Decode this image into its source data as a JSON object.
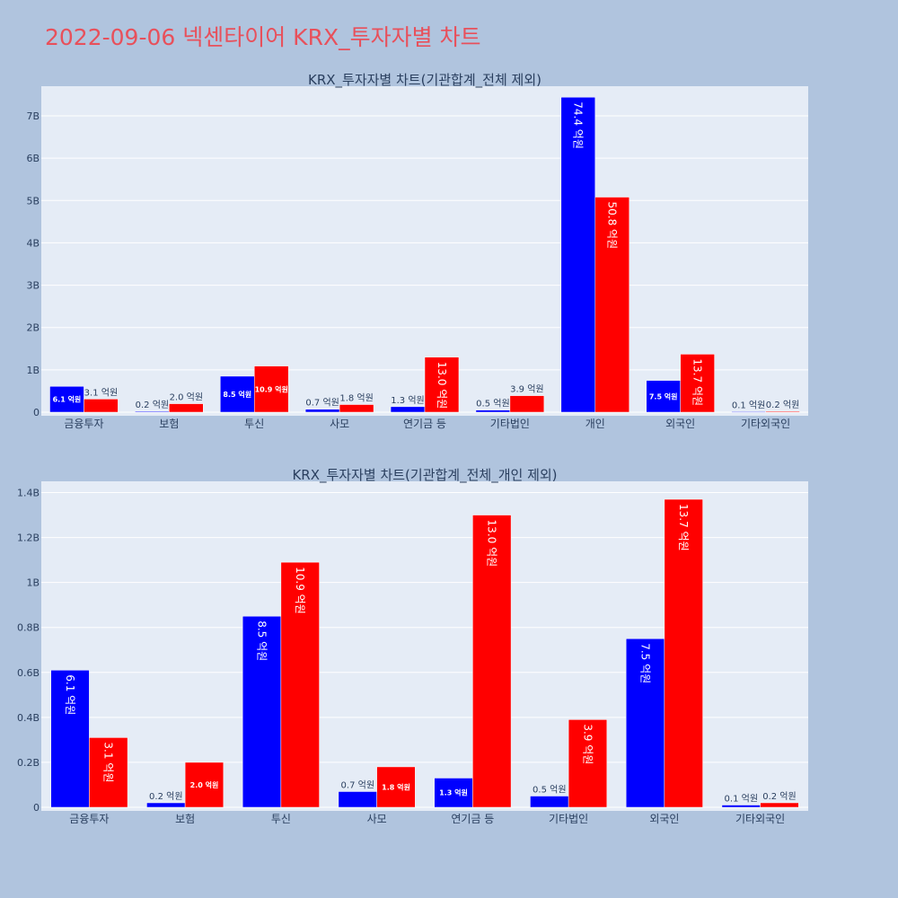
{
  "page": {
    "title": "2022-09-06 넥센타이어 KRX_투자자별 차트"
  },
  "colors": {
    "background": "#b0c4de",
    "plot_bg": "#e5ecf6",
    "series1": "#0000ff",
    "series2": "#ff0000",
    "title": "#e8505b"
  },
  "chart_data": [
    {
      "type": "bar",
      "title": "KRX_투자자별 차트(기관합계_전체 제외)",
      "categories": [
        "금융투자",
        "보험",
        "투신",
        "사모",
        "연기금 등",
        "기타법인",
        "개인",
        "외국인",
        "기타외국인"
      ],
      "series": [
        {
          "values": [
            0.61,
            0.02,
            0.85,
            0.07,
            0.13,
            0.05,
            7.44,
            0.75,
            0.01
          ],
          "labels": [
            "6.1 억원",
            "0.2 억원",
            "8.5 억원",
            "0.7 억원",
            "1.3 억원",
            "0.5 억원",
            "74.4 억원",
            "7.5 억원",
            "0.1 억원"
          ]
        },
        {
          "values": [
            0.31,
            0.2,
            1.09,
            0.18,
            1.3,
            0.39,
            5.08,
            1.37,
            0.02
          ],
          "labels": [
            "3.1 억원",
            "2.0 억원",
            "10.9 억원",
            "1.8 억원",
            "13.0 억원",
            "3.9 억원",
            "50.8 억원",
            "13.7 억원",
            "0.2 억원"
          ]
        }
      ],
      "ylim": [
        0,
        7.7
      ],
      "yticks": [
        0,
        1,
        2,
        3,
        4,
        5,
        6,
        7
      ],
      "ytick_labels": [
        "0",
        "1B",
        "2B",
        "3B",
        "4B",
        "5B",
        "6B",
        "7B"
      ],
      "grid": true
    },
    {
      "type": "bar",
      "title": "KRX_투자자별 차트(기관합계_전체_개인 제외)",
      "categories": [
        "금융투자",
        "보험",
        "투신",
        "사모",
        "연기금 등",
        "기타법인",
        "외국인",
        "기타외국인"
      ],
      "series": [
        {
          "values": [
            0.61,
            0.02,
            0.85,
            0.07,
            0.13,
            0.05,
            0.75,
            0.01
          ],
          "labels": [
            "6.1 억원",
            "0.2 억원",
            "8.5 억원",
            "0.7 억원",
            "1.3 억원",
            "0.5 억원",
            "7.5 억원",
            "0.1 억원"
          ]
        },
        {
          "values": [
            0.31,
            0.2,
            1.09,
            0.18,
            1.3,
            0.39,
            1.37,
            0.02
          ],
          "labels": [
            "3.1 억원",
            "2.0 억원",
            "10.9 억원",
            "1.8 억원",
            "13.0 억원",
            "3.9 억원",
            "13.7 억원",
            "0.2 억원"
          ]
        }
      ],
      "ylim": [
        0,
        1.45
      ],
      "yticks": [
        0,
        0.2,
        0.4,
        0.6,
        0.8,
        1.0,
        1.2,
        1.4
      ],
      "ytick_labels": [
        "0",
        "0.2B",
        "0.4B",
        "0.6B",
        "0.8B",
        "1B",
        "1.2B",
        "1.4B"
      ],
      "grid": true
    }
  ]
}
